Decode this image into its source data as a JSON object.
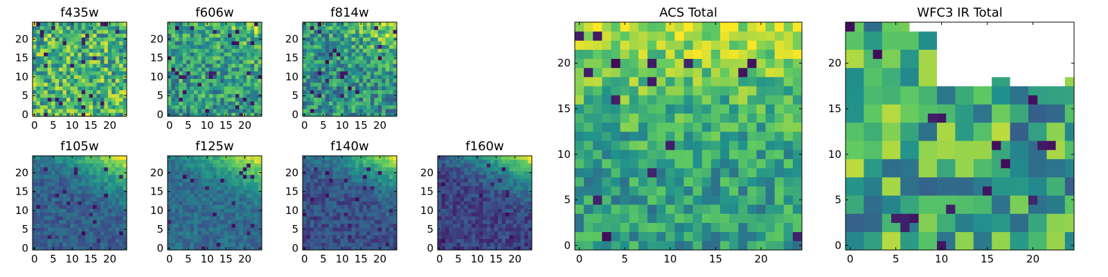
{
  "figure": {
    "background": "#ffffff"
  },
  "colormap": {
    "name": "viridis",
    "stops": [
      "#440154",
      "#3b528b",
      "#21918c",
      "#5ec962",
      "#fde725"
    ]
  },
  "chart_data": [
    {
      "type": "heatmap",
      "title": "f435w",
      "grid": [
        25,
        25
      ],
      "xticks": [
        0,
        5,
        10,
        15,
        20
      ],
      "yticks": [
        0,
        5,
        10,
        15,
        20
      ],
      "xlim": [
        -0.5,
        24.5
      ],
      "ylim": [
        -0.5,
        24.5
      ],
      "pattern": "uniform-noise",
      "level": [
        0.55,
        0.75
      ],
      "noise": 0.3,
      "seed": 11
    },
    {
      "type": "heatmap",
      "title": "f606w",
      "grid": [
        25,
        25
      ],
      "xticks": [
        0,
        5,
        10,
        15,
        20
      ],
      "yticks": [
        0,
        5,
        10,
        15,
        20
      ],
      "xlim": [
        -0.5,
        24.5
      ],
      "ylim": [
        -0.5,
        24.5
      ],
      "pattern": "top-right-gradient",
      "level": [
        0.55,
        0.8
      ],
      "noise": 0.25,
      "seed": 23
    },
    {
      "type": "heatmap",
      "title": "f814w",
      "grid": [
        25,
        25
      ],
      "xticks": [
        0,
        5,
        10,
        15,
        20
      ],
      "yticks": [
        0,
        5,
        10,
        15,
        20
      ],
      "xlim": [
        -0.5,
        24.5
      ],
      "ylim": [
        -0.5,
        24.5
      ],
      "pattern": "top-right-gradient",
      "level": [
        0.5,
        0.95
      ],
      "noise": 0.25,
      "seed": 37
    },
    {
      "type": "heatmap",
      "title": "f105w",
      "grid": [
        25,
        25
      ],
      "xticks": [
        0,
        5,
        10,
        15,
        20
      ],
      "yticks": [
        0,
        5,
        10,
        15,
        20
      ],
      "xlim": [
        -0.5,
        24.5
      ],
      "ylim": [
        -0.5,
        24.5
      ],
      "pattern": "top-right-gradient",
      "level": [
        0.3,
        1.0
      ],
      "noise": 0.1,
      "seed": 41
    },
    {
      "type": "heatmap",
      "title": "f125w",
      "grid": [
        25,
        25
      ],
      "xticks": [
        0,
        5,
        10,
        15,
        20
      ],
      "yticks": [
        0,
        5,
        10,
        15,
        20
      ],
      "xlim": [
        -0.5,
        24.5
      ],
      "ylim": [
        -0.5,
        24.5
      ],
      "pattern": "top-right-gradient",
      "level": [
        0.35,
        1.0
      ],
      "noise": 0.1,
      "seed": 53
    },
    {
      "type": "heatmap",
      "title": "f140w",
      "grid": [
        25,
        25
      ],
      "xticks": [
        0,
        5,
        10,
        15,
        20
      ],
      "yticks": [
        0,
        5,
        10,
        15,
        20
      ],
      "xlim": [
        -0.5,
        24.5
      ],
      "ylim": [
        -0.5,
        24.5
      ],
      "pattern": "top-right-gradient",
      "level": [
        0.25,
        0.95
      ],
      "noise": 0.1,
      "seed": 67
    },
    {
      "type": "heatmap",
      "title": "f160w",
      "grid": [
        25,
        25
      ],
      "xticks": [
        0,
        5,
        10,
        15,
        20
      ],
      "yticks": [
        0,
        5,
        10,
        15,
        20
      ],
      "xlim": [
        -0.5,
        24.5
      ],
      "ylim": [
        -0.5,
        24.5
      ],
      "pattern": "top-right-gradient",
      "level": [
        0.2,
        0.95
      ],
      "noise": 0.1,
      "seed": 79
    },
    {
      "type": "heatmap",
      "title": "ACS Total",
      "grid": [
        25,
        25
      ],
      "xticks": [
        0,
        5,
        10,
        15,
        20
      ],
      "yticks": [
        0,
        5,
        10,
        15,
        20
      ],
      "xlim": [
        -0.5,
        24.5
      ],
      "ylim": [
        -0.5,
        24.5
      ],
      "pattern": "top-gradient",
      "level": [
        0.55,
        0.9
      ],
      "noise": 0.2,
      "seed": 97
    },
    {
      "type": "heatmap",
      "title": "WFC3 IR Total",
      "grid": [
        25,
        25
      ],
      "xticks": [
        0,
        5,
        10,
        15,
        20
      ],
      "yticks": [
        0,
        5,
        10,
        15,
        20
      ],
      "xlim": [
        -0.5,
        24.5
      ],
      "ylim": [
        -0.5,
        24.5
      ],
      "pattern": "blocky-noise",
      "level": [
        0.4,
        0.8
      ],
      "noise": 0.3,
      "seed": 101,
      "masked_region": "upper-right (white, no data)"
    }
  ]
}
